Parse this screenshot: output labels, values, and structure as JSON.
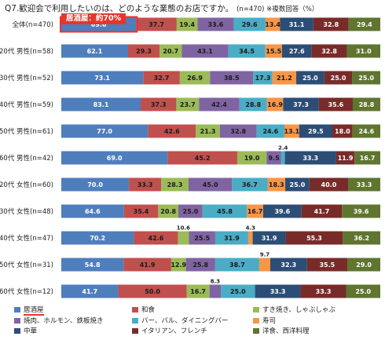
{
  "title": {
    "main": "Q7.歓迎会で利用したいのは、どのような業態のお店ですか。",
    "note": "(n=470) ※複数回答（%）"
  },
  "highlight_label": "居酒屋：約70%",
  "chart_data": {
    "type": "bar",
    "orientation": "horizontal",
    "stacked": true,
    "title": "Q7.歓迎会で利用したいのは、どのような業態のお店ですか。",
    "categories": [
      "全体(n=470)",
      "20代 男性(n=58)",
      "30代 男性(n=52)",
      "40代 男性(n=59)",
      "50代 男性(n=61)",
      "60代 男性(n=42)",
      "20代 女性(n=60)",
      "30代 女性(n=48)",
      "40代 女性(n=47)",
      "50代 女性(n=31)",
      "60代 女性(n=12)"
    ],
    "series": [
      {
        "name": "居酒屋",
        "color": "#4f7ebd",
        "values": [
          69.6,
          62.1,
          73.1,
          83.1,
          77.0,
          69.0,
          70.0,
          64.6,
          70.2,
          54.8,
          41.7
        ]
      },
      {
        "name": "和食",
        "color": "#c0504d",
        "values": [
          37.7,
          29.3,
          32.7,
          37.3,
          42.6,
          45.2,
          33.3,
          35.4,
          42.6,
          41.9,
          50.0
        ]
      },
      {
        "name": "すき焼き、しゃぶしゃぶ",
        "color": "#9bbb59",
        "values": [
          19.4,
          20.7,
          26.9,
          23.7,
          21.3,
          19.0,
          28.3,
          20.8,
          10.6,
          12.9,
          16.7
        ]
      },
      {
        "name": "焼肉、ホルモン、鉄板焼き",
        "color": "#8064a2",
        "values": [
          33.6,
          43.1,
          38.5,
          42.4,
          32.8,
          9.5,
          45.0,
          25.0,
          25.5,
          25.8,
          8.3
        ]
      },
      {
        "name": "バー、バル、ダイニングバー",
        "color": "#4bacc6",
        "values": [
          29.6,
          34.5,
          17.3,
          28.8,
          24.6,
          2.4,
          36.7,
          45.8,
          31.9,
          38.7,
          25.0
        ]
      },
      {
        "name": "寿司",
        "color": "#f79646",
        "values": [
          13.4,
          15.5,
          21.2,
          16.9,
          13.1,
          0,
          18.3,
          16.7,
          4.3,
          9.7,
          0
        ]
      },
      {
        "name": "中華",
        "color": "#2c4d75",
        "values": [
          31.1,
          27.6,
          25.0,
          37.3,
          29.5,
          33.3,
          25.0,
          39.6,
          31.9,
          32.3,
          33.3
        ]
      },
      {
        "name": "イタリアン、フレンチ",
        "color": "#772c2a",
        "values": [
          32.8,
          32.8,
          25.0,
          35.6,
          18.0,
          11.9,
          40.0,
          41.7,
          55.3,
          35.5,
          33.3
        ]
      },
      {
        "name": "洋食、西洋料理",
        "color": "#5f7530",
        "values": [
          29.4,
          31.0,
          25.0,
          28.8,
          24.6,
          16.7,
          33.3,
          39.6,
          36.2,
          29.0,
          25.0
        ]
      }
    ],
    "highlight": {
      "category": "全体(n=470)",
      "series": "居酒屋"
    },
    "legend_position": "bottom",
    "grid": false
  },
  "legend": [
    "居酒屋",
    "和食",
    "すき焼き、しゃぶしゃぶ",
    "焼肉、ホルモン、鉄板焼き",
    "バー、バル、ダイニングバー",
    "寿司",
    "中華",
    "イタリアン、フレンチ",
    "洋食、西洋料理"
  ]
}
